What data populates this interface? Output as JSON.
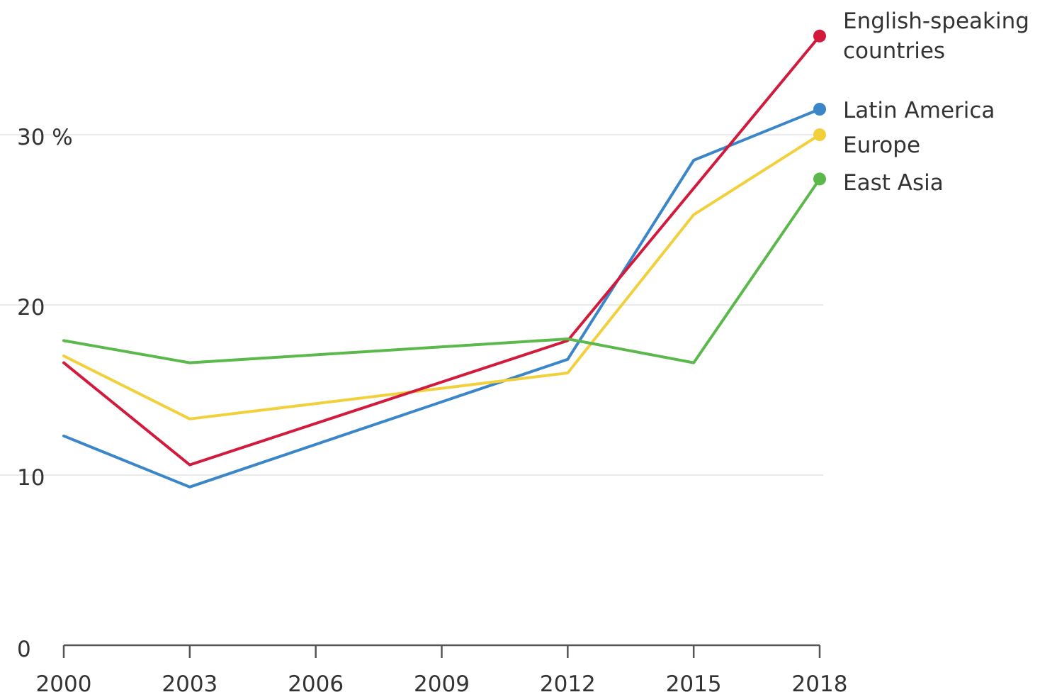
{
  "chart_data": {
    "type": "line",
    "title": "",
    "xlabel": "",
    "ylabel": "",
    "x": [
      2000,
      2003,
      2006,
      2009,
      2012,
      2015,
      2018
    ],
    "xlim": [
      2000,
      2018
    ],
    "ylim": [
      0,
      40
    ],
    "x_ticks": [
      "2000",
      "2003",
      "2006",
      "2009",
      "2012",
      "2015",
      "2018"
    ],
    "y_ticks": [
      {
        "value": 0,
        "label": "0"
      },
      {
        "value": 10,
        "label": "10"
      },
      {
        "value": 20,
        "label": "20"
      },
      {
        "value": 30,
        "label": "30 %"
      }
    ],
    "grid": true,
    "legend": "direct labels at right end of lines",
    "series": [
      {
        "name": "English-speaking countries",
        "label_lines": [
          "English-speaking",
          "countries"
        ],
        "color": "#d11a3c",
        "x": [
          2000,
          2003,
          2012,
          2018
        ],
        "values": [
          16.6,
          10.6,
          17.9,
          35.8
        ]
      },
      {
        "name": "Latin America",
        "label_lines": [
          "Latin America"
        ],
        "color": "#3a86c8",
        "x": [
          2000,
          2003,
          2012,
          2015,
          2018
        ],
        "values": [
          12.3,
          9.3,
          16.8,
          28.5,
          31.5
        ]
      },
      {
        "name": "Europe",
        "label_lines": [
          "Europe"
        ],
        "color": "#f2d03b",
        "x": [
          2000,
          2003,
          2012,
          2015,
          2018
        ],
        "values": [
          17.0,
          13.3,
          16.0,
          25.3,
          30.0
        ]
      },
      {
        "name": "East Asia",
        "label_lines": [
          "East Asia"
        ],
        "color": "#5bb84a",
        "x": [
          2000,
          2003,
          2012,
          2015,
          2018
        ],
        "values": [
          17.9,
          16.6,
          18.0,
          16.6,
          27.4
        ]
      }
    ]
  }
}
